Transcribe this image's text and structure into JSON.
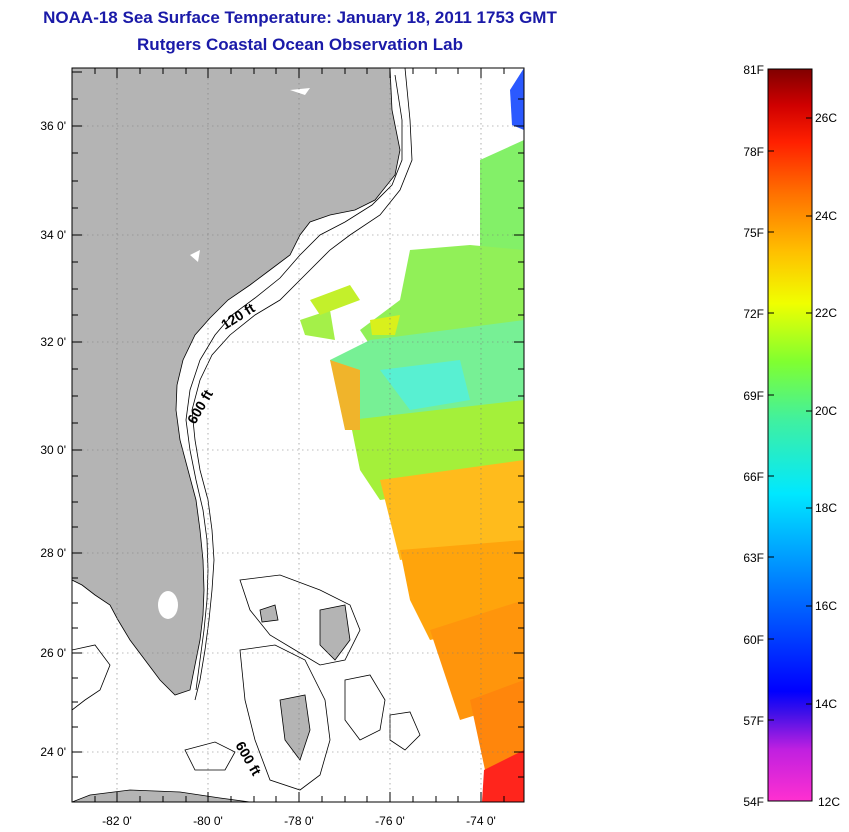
{
  "title": "NOAA-18 Sea Surface Temperature:  January 18, 2011 1753 GMT",
  "subtitle": "Rutgers Coastal Ocean Observation Lab",
  "map": {
    "lon_ticks": [
      "-82 0'",
      "-80 0'",
      "-78 0'",
      "-76 0'",
      "-74 0'"
    ],
    "lat_ticks": [
      "36 0'",
      "34 0'",
      "32 0'",
      "30 0'",
      "28 0'",
      "26 0'",
      "24 0'"
    ],
    "contour_labels": [
      "120 ft",
      "600 ft",
      "600 ft"
    ],
    "land_color": "#b4b4b4"
  },
  "colorbar": {
    "fahrenheit_ticks": [
      "81F",
      "78F",
      "75F",
      "72F",
      "69F",
      "66F",
      "63F",
      "60F",
      "57F",
      "54F"
    ],
    "celsius_ticks": [
      "26C",
      "24C",
      "22C",
      "20C",
      "18C",
      "16C",
      "14C",
      "12C"
    ],
    "gradient": [
      "#ff30d0",
      "#9020e0",
      "#0000ff",
      "#0070ff",
      "#00d8ff",
      "#40f0a0",
      "#70ff40",
      "#e0ff00",
      "#ffd000",
      "#ff8000",
      "#ff2000",
      "#e00000",
      "#800000"
    ]
  }
}
